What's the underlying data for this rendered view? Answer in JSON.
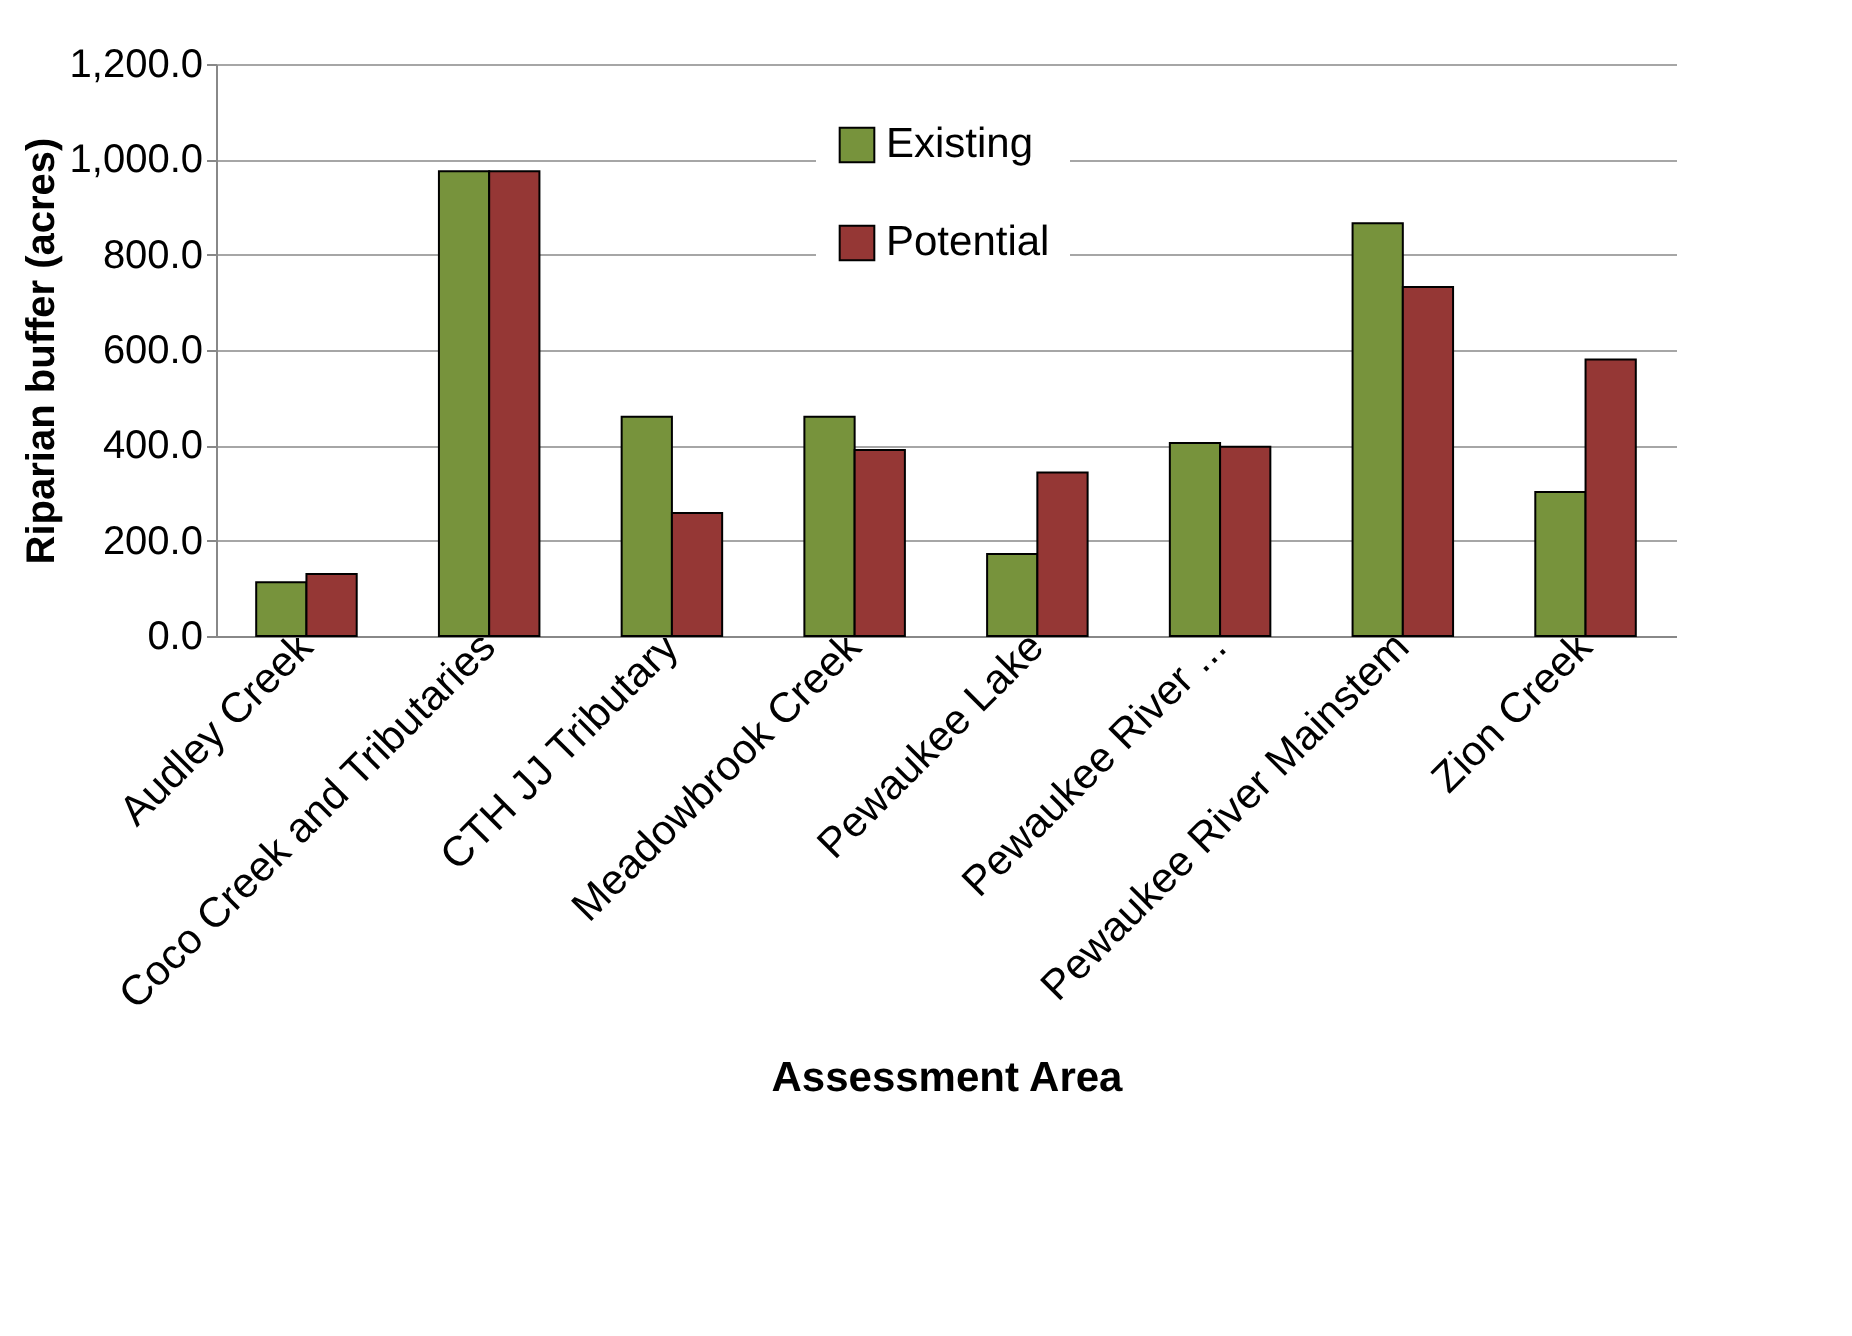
{
  "chart_data": {
    "type": "bar",
    "xlabel": "Assessment Area",
    "ylabel": "Riparian buffer (acres)",
    "categories": [
      "Audley Creek",
      "Coco Creek and Tributaries",
      "CTH JJ Tributary",
      "Meadowbrook Creek",
      "Pewaukee Lake",
      "Pewaukee River ...",
      "Pewaukee River Mainstem",
      "Zion Creek"
    ],
    "series": [
      {
        "name": "Existing",
        "color": "#77933c",
        "values": [
          113,
          975,
          460,
          460,
          172,
          405,
          866,
          302
        ]
      },
      {
        "name": "Potential",
        "color": "#953735",
        "values": [
          130,
          975,
          258,
          390,
          343,
          397,
          732,
          580
        ]
      }
    ],
    "ylim": [
      0,
      1200
    ],
    "yticks": [
      {
        "value": 0,
        "label": "0.0"
      },
      {
        "value": 200,
        "label": "200.0"
      },
      {
        "value": 400,
        "label": "400.0"
      },
      {
        "value": 600,
        "label": "600.0"
      },
      {
        "value": 800,
        "label": "800.0"
      },
      {
        "value": 1000,
        "label": "1,000.0"
      },
      {
        "value": 1200,
        "label": "1,200.0"
      }
    ],
    "grid": "y",
    "legend": "top"
  }
}
